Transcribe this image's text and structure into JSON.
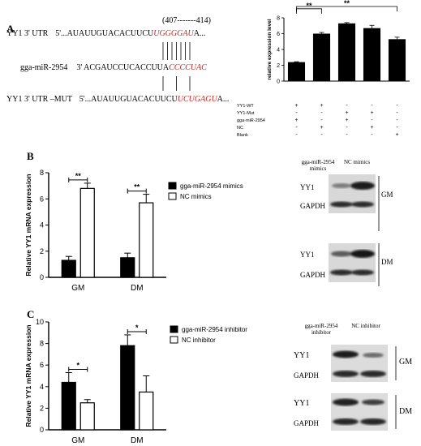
{
  "panel_a": {
    "letter": "A",
    "range_label": "(407-------414)",
    "rows": [
      {
        "name": "YY1 3' UTR",
        "prime": "5'...",
        "seq_black": "AUAUUGUACACUUCU",
        "seq_red": "UGGGGAU",
        "seq_tail": "A..."
      },
      {
        "name": "gga-miR-2954",
        "prime": "3'",
        "seq_black": "ACGAUCCUCACCUUA",
        "seq_red": "CCCCUAC",
        "seq_tail": ""
      },
      {
        "name": "YY1 3' UTR –MUT",
        "prime": "5'...",
        "seq_black": "AUAUUGUACACUUCU",
        "seq_red": "UCUGAGU",
        "seq_tail": "A..."
      }
    ]
  },
  "panel_b": {
    "letter": "B",
    "wb": {
      "col_headers": [
        "gga-miR-2954 mimics",
        "NC mimics"
      ],
      "groups": [
        {
          "name": "GM",
          "bands": [
            "YY1",
            "GAPDH"
          ]
        },
        {
          "name": "DM",
          "bands": [
            "YY1",
            "GAPDH"
          ]
        }
      ]
    }
  },
  "panel_c": {
    "letter": "C",
    "wb": {
      "col_headers": [
        "gga-miR-2954 inhibitor",
        "NC inhibitor"
      ],
      "groups": [
        {
          "name": "GM",
          "bands": [
            "YY1",
            "GAPDH"
          ]
        },
        {
          "name": "DM",
          "bands": [
            "YY1",
            "GAPDH"
          ]
        }
      ]
    }
  },
  "chart_data": [
    {
      "type": "bar",
      "panel": "A",
      "ylabel": "relative expression level",
      "ylim": [
        0,
        8
      ],
      "yticks": [
        0,
        2,
        4,
        6,
        8
      ],
      "values": [
        2.4,
        6.0,
        7.3,
        6.7,
        5.3
      ],
      "errors": [
        0.05,
        0.15,
        0.1,
        0.35,
        0.25
      ],
      "colors": [
        "#000000",
        "#000000",
        "#000000",
        "#000000",
        "#000000"
      ],
      "significance": [
        {
          "from": 0,
          "to": 1,
          "label": "**"
        },
        {
          "from": 0,
          "to": 4,
          "label": "**"
        }
      ],
      "table": {
        "rows": [
          "YY1-WT",
          "YY1-Mut",
          "gga-miR-2954",
          "NC",
          "Blank"
        ],
        "cells": [
          [
            "+",
            "+",
            "-",
            "-",
            "-"
          ],
          [
            "-",
            "-",
            "+",
            "+",
            "-"
          ],
          [
            "+",
            "-",
            "+",
            "-",
            "-"
          ],
          [
            "-",
            "+",
            "-",
            "+",
            "-"
          ],
          [
            "-",
            "-",
            "-",
            "-",
            "+"
          ]
        ]
      }
    },
    {
      "type": "bar",
      "panel": "B",
      "ylabel": "Relative YY1 mRNA expression",
      "ylim": [
        0,
        8
      ],
      "yticks": [
        0,
        2,
        4,
        6,
        8
      ],
      "categories": [
        "GM",
        "DM"
      ],
      "series": [
        {
          "name": "gga-miR-2954 mimics",
          "values": [
            1.3,
            1.5
          ],
          "errors": [
            0.3,
            0.35
          ],
          "fill": "#000000"
        },
        {
          "name": "NC mimics",
          "values": [
            6.8,
            5.7
          ],
          "errors": [
            0.4,
            0.65
          ],
          "fill": "#ffffff"
        }
      ],
      "significance": [
        {
          "category": 0,
          "label": "**"
        },
        {
          "category": 1,
          "label": "**"
        }
      ]
    },
    {
      "type": "bar",
      "panel": "C",
      "ylabel": "Relative YY1 mRNA expression",
      "ylim": [
        0,
        10
      ],
      "yticks": [
        0,
        2,
        4,
        6,
        8,
        10
      ],
      "categories": [
        "GM",
        "DM"
      ],
      "series": [
        {
          "name": "gga-miR-2954 inhibitor",
          "values": [
            4.4,
            7.8
          ],
          "errors": [
            0.9,
            1.0
          ],
          "fill": "#000000"
        },
        {
          "name": "NC inhibitor",
          "values": [
            2.5,
            3.5
          ],
          "errors": [
            0.3,
            1.5
          ],
          "fill": "#ffffff"
        }
      ],
      "significance": [
        {
          "category": 0,
          "label": "*"
        },
        {
          "category": 1,
          "label": "*"
        }
      ]
    }
  ]
}
